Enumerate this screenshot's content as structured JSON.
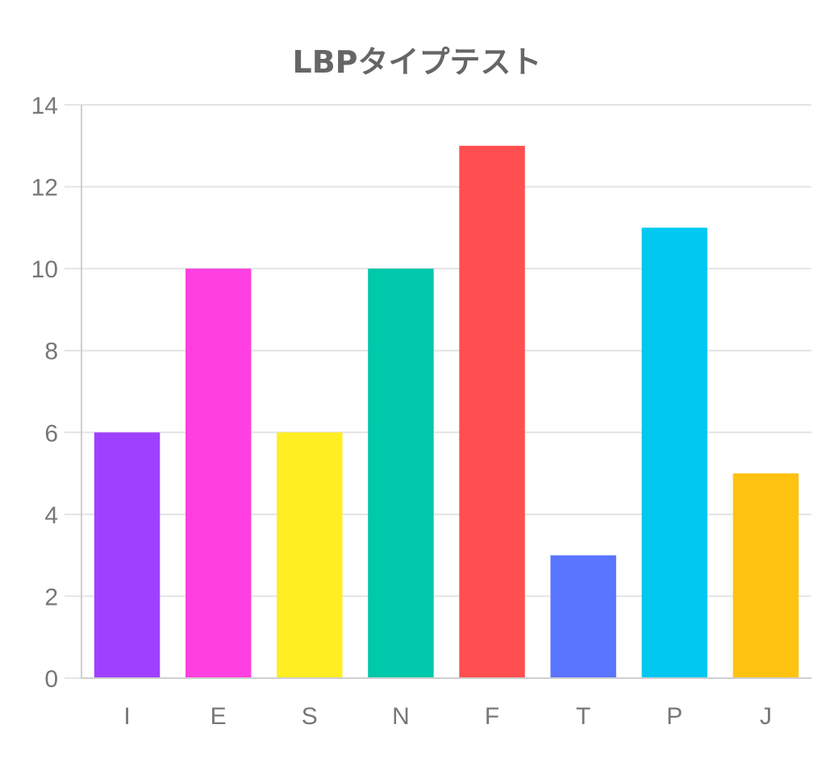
{
  "chart_data": {
    "type": "bar",
    "title": "LBPタイプテスト",
    "xlabel": "",
    "ylabel": "",
    "categories": [
      "I",
      "E",
      "S",
      "N",
      "F",
      "T",
      "P",
      "J"
    ],
    "values": [
      6,
      10,
      6,
      10,
      13,
      3,
      11,
      5
    ],
    "colors": [
      "#a040ff",
      "#ff40e0",
      "#ffee22",
      "#00c8aa",
      "#ff4f50",
      "#5a75ff",
      "#00c8f0",
      "#ffc210"
    ],
    "ylim": [
      0,
      14
    ],
    "yticks": [
      "0",
      "2",
      "4",
      "6",
      "8",
      "10",
      "12",
      "14"
    ],
    "grid": true,
    "legend": "none"
  }
}
